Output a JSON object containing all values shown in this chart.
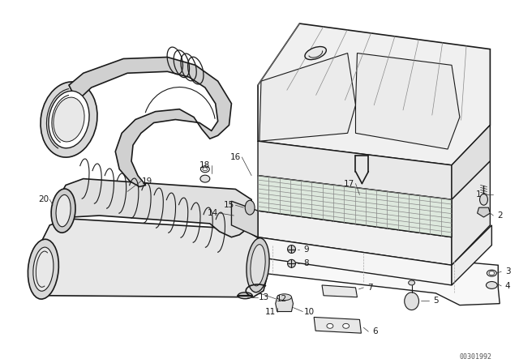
{
  "bg_color": "#ffffff",
  "line_color": "#1a1a1a",
  "fig_width": 6.4,
  "fig_height": 4.48,
  "dpi": 100,
  "watermark": "00301992"
}
